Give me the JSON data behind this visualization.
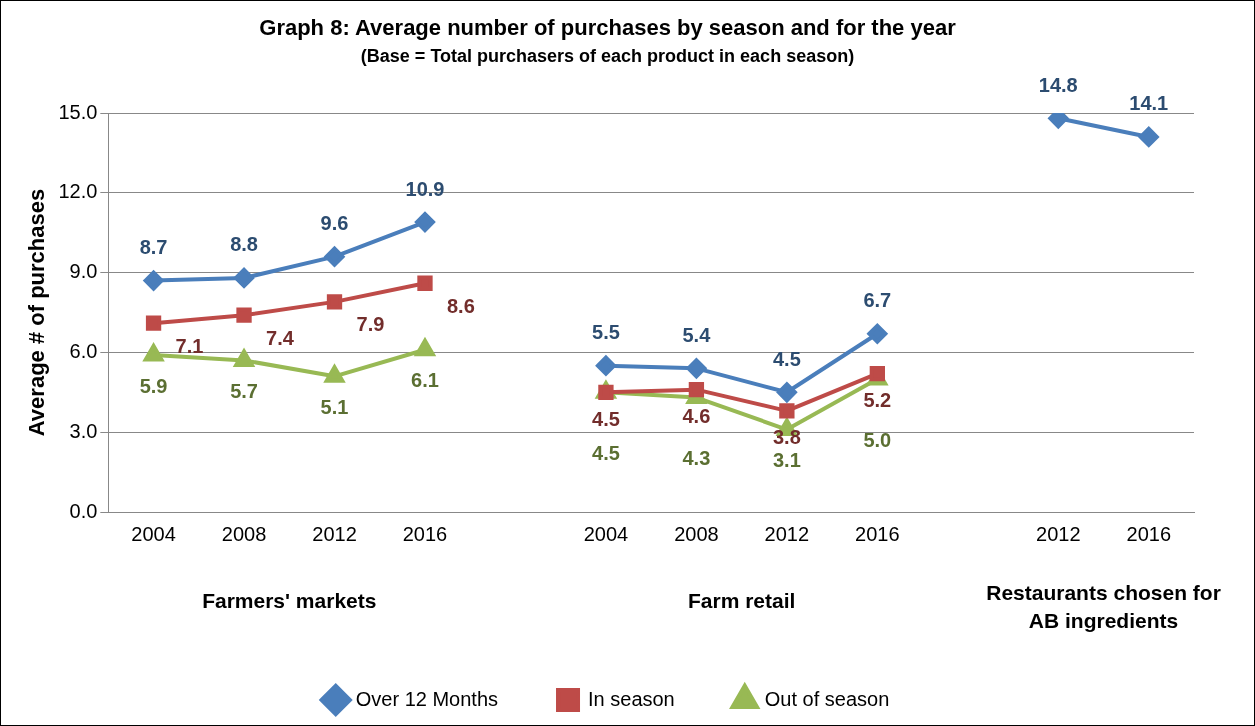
{
  "chart_data": {
    "type": "line",
    "title": "Graph 8: Average number of purchases by season and for the year",
    "subtitle": "(Base = Total purchasers of each product in each season)",
    "ylabel": "Average # of purchases",
    "categories": [
      "2004",
      "2008",
      "2012",
      "2016",
      null,
      "2004",
      "2008",
      "2012",
      "2016",
      null,
      "2012",
      "2016"
    ],
    "series": [
      {
        "name": "Over 12 Months",
        "color": "#4a7ebb",
        "marker": "diamond",
        "values": [
          8.7,
          8.8,
          9.6,
          10.9,
          null,
          5.5,
          5.4,
          4.5,
          6.7,
          null,
          14.8,
          14.1
        ],
        "value_labels": [
          "8.7",
          "8.8",
          "9.6",
          "10.9",
          null,
          "5.5",
          "5.4",
          "4.5",
          "6.7",
          null,
          "14.8",
          "14.1"
        ]
      },
      {
        "name": "In season",
        "color": "#be4b48",
        "marker": "square",
        "values": [
          7.1,
          7.4,
          7.9,
          8.6,
          null,
          4.5,
          4.6,
          3.8,
          5.2,
          null,
          null,
          null
        ],
        "value_labels": [
          "7.1",
          "7.4",
          "7.9",
          "8.6",
          null,
          "4.5",
          "4.6",
          "3.8",
          "5.2",
          null,
          null,
          null
        ]
      },
      {
        "name": "Out of season",
        "color": "#98b954",
        "marker": "triangle",
        "values": [
          5.9,
          5.7,
          5.1,
          6.1,
          null,
          4.5,
          4.3,
          3.1,
          5.0,
          null,
          null,
          null
        ],
        "value_labels": [
          "5.9",
          "5.7",
          "5.1",
          "6.1",
          null,
          "4.5",
          "4.3",
          "3.1",
          "5.0",
          null,
          null,
          null
        ]
      }
    ],
    "ylim": [
      0,
      15
    ],
    "yticks": [
      {
        "value": 0,
        "label": "0.0"
      },
      {
        "value": 3,
        "label": "3.0"
      },
      {
        "value": 6,
        "label": "6.0"
      },
      {
        "value": 9,
        "label": "9.0"
      },
      {
        "value": 12,
        "label": "12.0"
      },
      {
        "value": 15,
        "label": "15.0"
      }
    ],
    "grid": "y",
    "legend": "bottom",
    "line_style": "solid",
    "annotations": [
      "Farmers' markets",
      "Farm retail",
      "Restaurants chosen for AB ingredients"
    ]
  }
}
